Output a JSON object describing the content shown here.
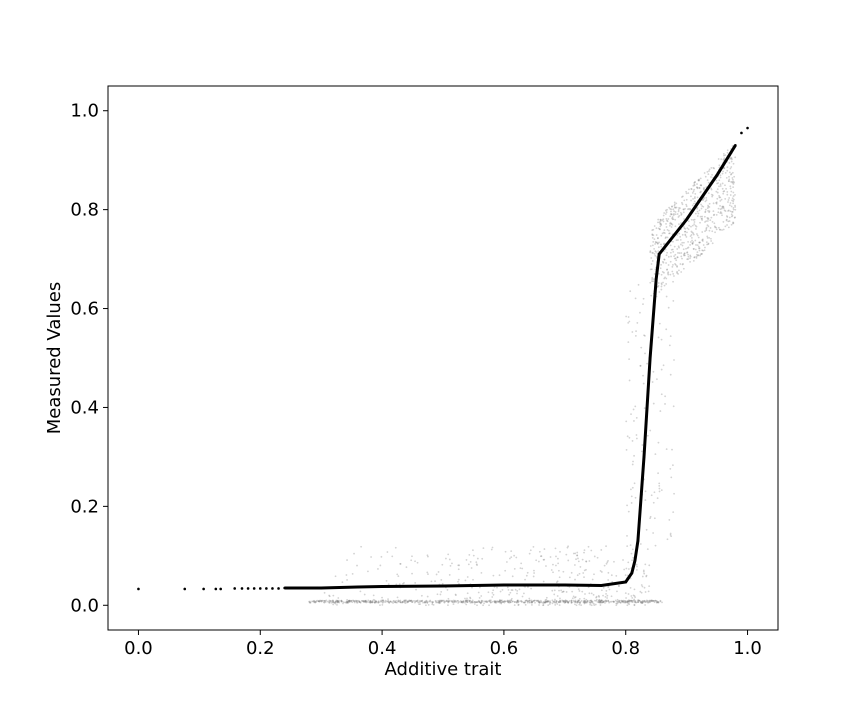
{
  "chart_data": {
    "type": "scatter",
    "title": "",
    "xlabel": "Additive trait",
    "ylabel": "Measured Values",
    "xlim": [
      -0.05,
      1.05
    ],
    "ylim": [
      -0.05,
      1.05
    ],
    "xticks": [
      0.0,
      0.2,
      0.4,
      0.6,
      0.8,
      1.0
    ],
    "yticks": [
      0.0,
      0.2,
      0.4,
      0.6,
      0.8,
      1.0
    ],
    "xtick_labels": [
      "0.0",
      "0.2",
      "0.4",
      "0.6",
      "0.8",
      "1.0"
    ],
    "ytick_labels": [
      "0.0",
      "0.2",
      "0.4",
      "0.6",
      "0.8",
      "1.0"
    ],
    "grid": false,
    "legend": "none",
    "colors": {
      "scatter_points": "#808080",
      "fit_line": "#000000"
    },
    "series": [
      {
        "kind": "scatter-cloud",
        "clusters": [
          {
            "x_range": [
              0.28,
              0.84
            ],
            "y_range": [
              0.0,
              0.12
            ],
            "density": "medium"
          },
          {
            "x_range": [
              0.28,
              0.86
            ],
            "y_range": [
              0.005,
              0.01
            ],
            "density": "high"
          },
          {
            "x_range": [
              0.84,
              0.98
            ],
            "y_range": [
              0.62,
              0.99
            ],
            "density": "high"
          },
          {
            "x_range": [
              0.8,
              0.88
            ],
            "y_range": [
              0.12,
              0.65
            ],
            "density": "low"
          }
        ]
      },
      {
        "kind": "fit-line",
        "x": [
          0.0,
          0.076,
          0.107,
          0.127,
          0.135,
          0.158,
          0.17,
          0.18,
          0.19,
          0.2,
          0.21,
          0.22,
          0.23,
          0.24,
          0.25,
          0.26,
          0.27,
          0.28,
          0.3,
          0.33,
          0.36,
          0.4,
          0.5,
          0.6,
          0.7,
          0.76,
          0.8,
          0.81,
          0.815,
          0.82,
          0.83,
          0.84,
          0.85,
          0.855,
          0.9,
          0.95,
          0.98,
          0.99,
          1.0
        ],
        "y": [
          0.033,
          0.033,
          0.033,
          0.033,
          0.033,
          0.034,
          0.034,
          0.034,
          0.034,
          0.034,
          0.034,
          0.034,
          0.034,
          0.035,
          0.035,
          0.035,
          0.035,
          0.035,
          0.035,
          0.036,
          0.037,
          0.038,
          0.039,
          0.041,
          0.041,
          0.04,
          0.047,
          0.065,
          0.09,
          0.13,
          0.3,
          0.5,
          0.66,
          0.71,
          0.78,
          0.87,
          0.93,
          0.955,
          0.965
        ]
      }
    ]
  }
}
